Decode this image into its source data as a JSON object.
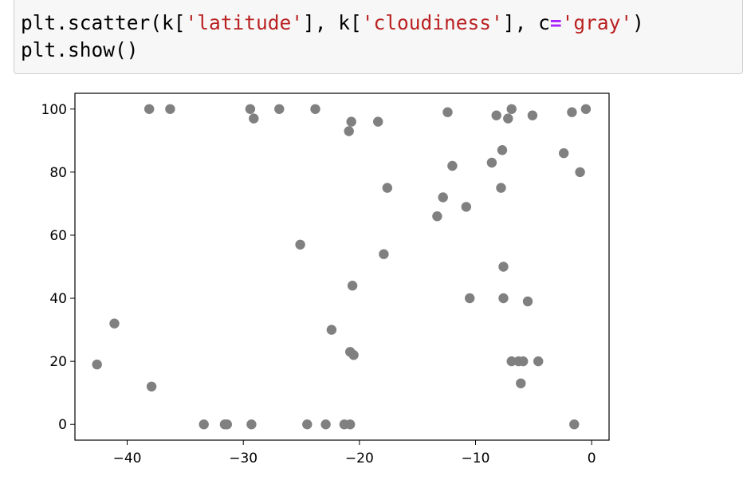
{
  "code_cell": {
    "line1": {
      "t1": "plt.scatter(k[",
      "s1": "'latitude'",
      "t2": "], k[",
      "s2": "'cloudiness'",
      "t3": "], c",
      "op": "=",
      "s3": "'gray'",
      "t4": ")"
    },
    "line2": "plt.show()"
  },
  "chart_data": {
    "type": "scatter",
    "title": "",
    "xlabel": "",
    "ylabel": "",
    "color": "#808080",
    "xlim": [
      -44.5,
      1.5
    ],
    "ylim": [
      -5,
      105
    ],
    "xticks": [
      -40,
      -30,
      -20,
      -10,
      0
    ],
    "xtick_labels": [
      "−40",
      "−30",
      "−20",
      "−10",
      "0"
    ],
    "yticks": [
      0,
      20,
      40,
      60,
      80,
      100
    ],
    "ytick_labels": [
      "0",
      "20",
      "40",
      "60",
      "80",
      "100"
    ],
    "grid": false,
    "points": [
      [
        -38.1,
        100
      ],
      [
        -36.3,
        100
      ],
      [
        -29.4,
        100
      ],
      [
        -29.1,
        97
      ],
      [
        -26.9,
        100
      ],
      [
        -23.8,
        100
      ],
      [
        -20.7,
        96
      ],
      [
        -20.9,
        93
      ],
      [
        -18.4,
        96
      ],
      [
        -12.4,
        99
      ],
      [
        -8.2,
        98
      ],
      [
        -7.2,
        97
      ],
      [
        -6.9,
        100
      ],
      [
        -5.1,
        98
      ],
      [
        -1.7,
        99
      ],
      [
        -0.5,
        100
      ],
      [
        -7.7,
        87
      ],
      [
        -2.4,
        86
      ],
      [
        -8.6,
        83
      ],
      [
        -12.0,
        82
      ],
      [
        -1.0,
        80
      ],
      [
        -17.6,
        75
      ],
      [
        -7.8,
        75
      ],
      [
        -12.8,
        72
      ],
      [
        -10.8,
        69
      ],
      [
        -13.3,
        66
      ],
      [
        -25.1,
        57
      ],
      [
        -17.9,
        54
      ],
      [
        -7.6,
        50
      ],
      [
        -20.6,
        44
      ],
      [
        -10.5,
        40
      ],
      [
        -7.6,
        40
      ],
      [
        -5.5,
        39
      ],
      [
        -41.1,
        32
      ],
      [
        -22.4,
        30
      ],
      [
        -20.8,
        23
      ],
      [
        -20.5,
        22
      ],
      [
        -6.9,
        20
      ],
      [
        -6.3,
        20
      ],
      [
        -5.9,
        20
      ],
      [
        -4.6,
        20
      ],
      [
        -42.6,
        19
      ],
      [
        -37.9,
        12
      ],
      [
        -6.1,
        13
      ],
      [
        -33.4,
        0
      ],
      [
        -31.6,
        0
      ],
      [
        -31.4,
        0
      ],
      [
        -29.3,
        0
      ],
      [
        -24.5,
        0
      ],
      [
        -22.9,
        0
      ],
      [
        -21.3,
        0
      ],
      [
        -20.8,
        0
      ],
      [
        -1.5,
        0
      ]
    ]
  }
}
